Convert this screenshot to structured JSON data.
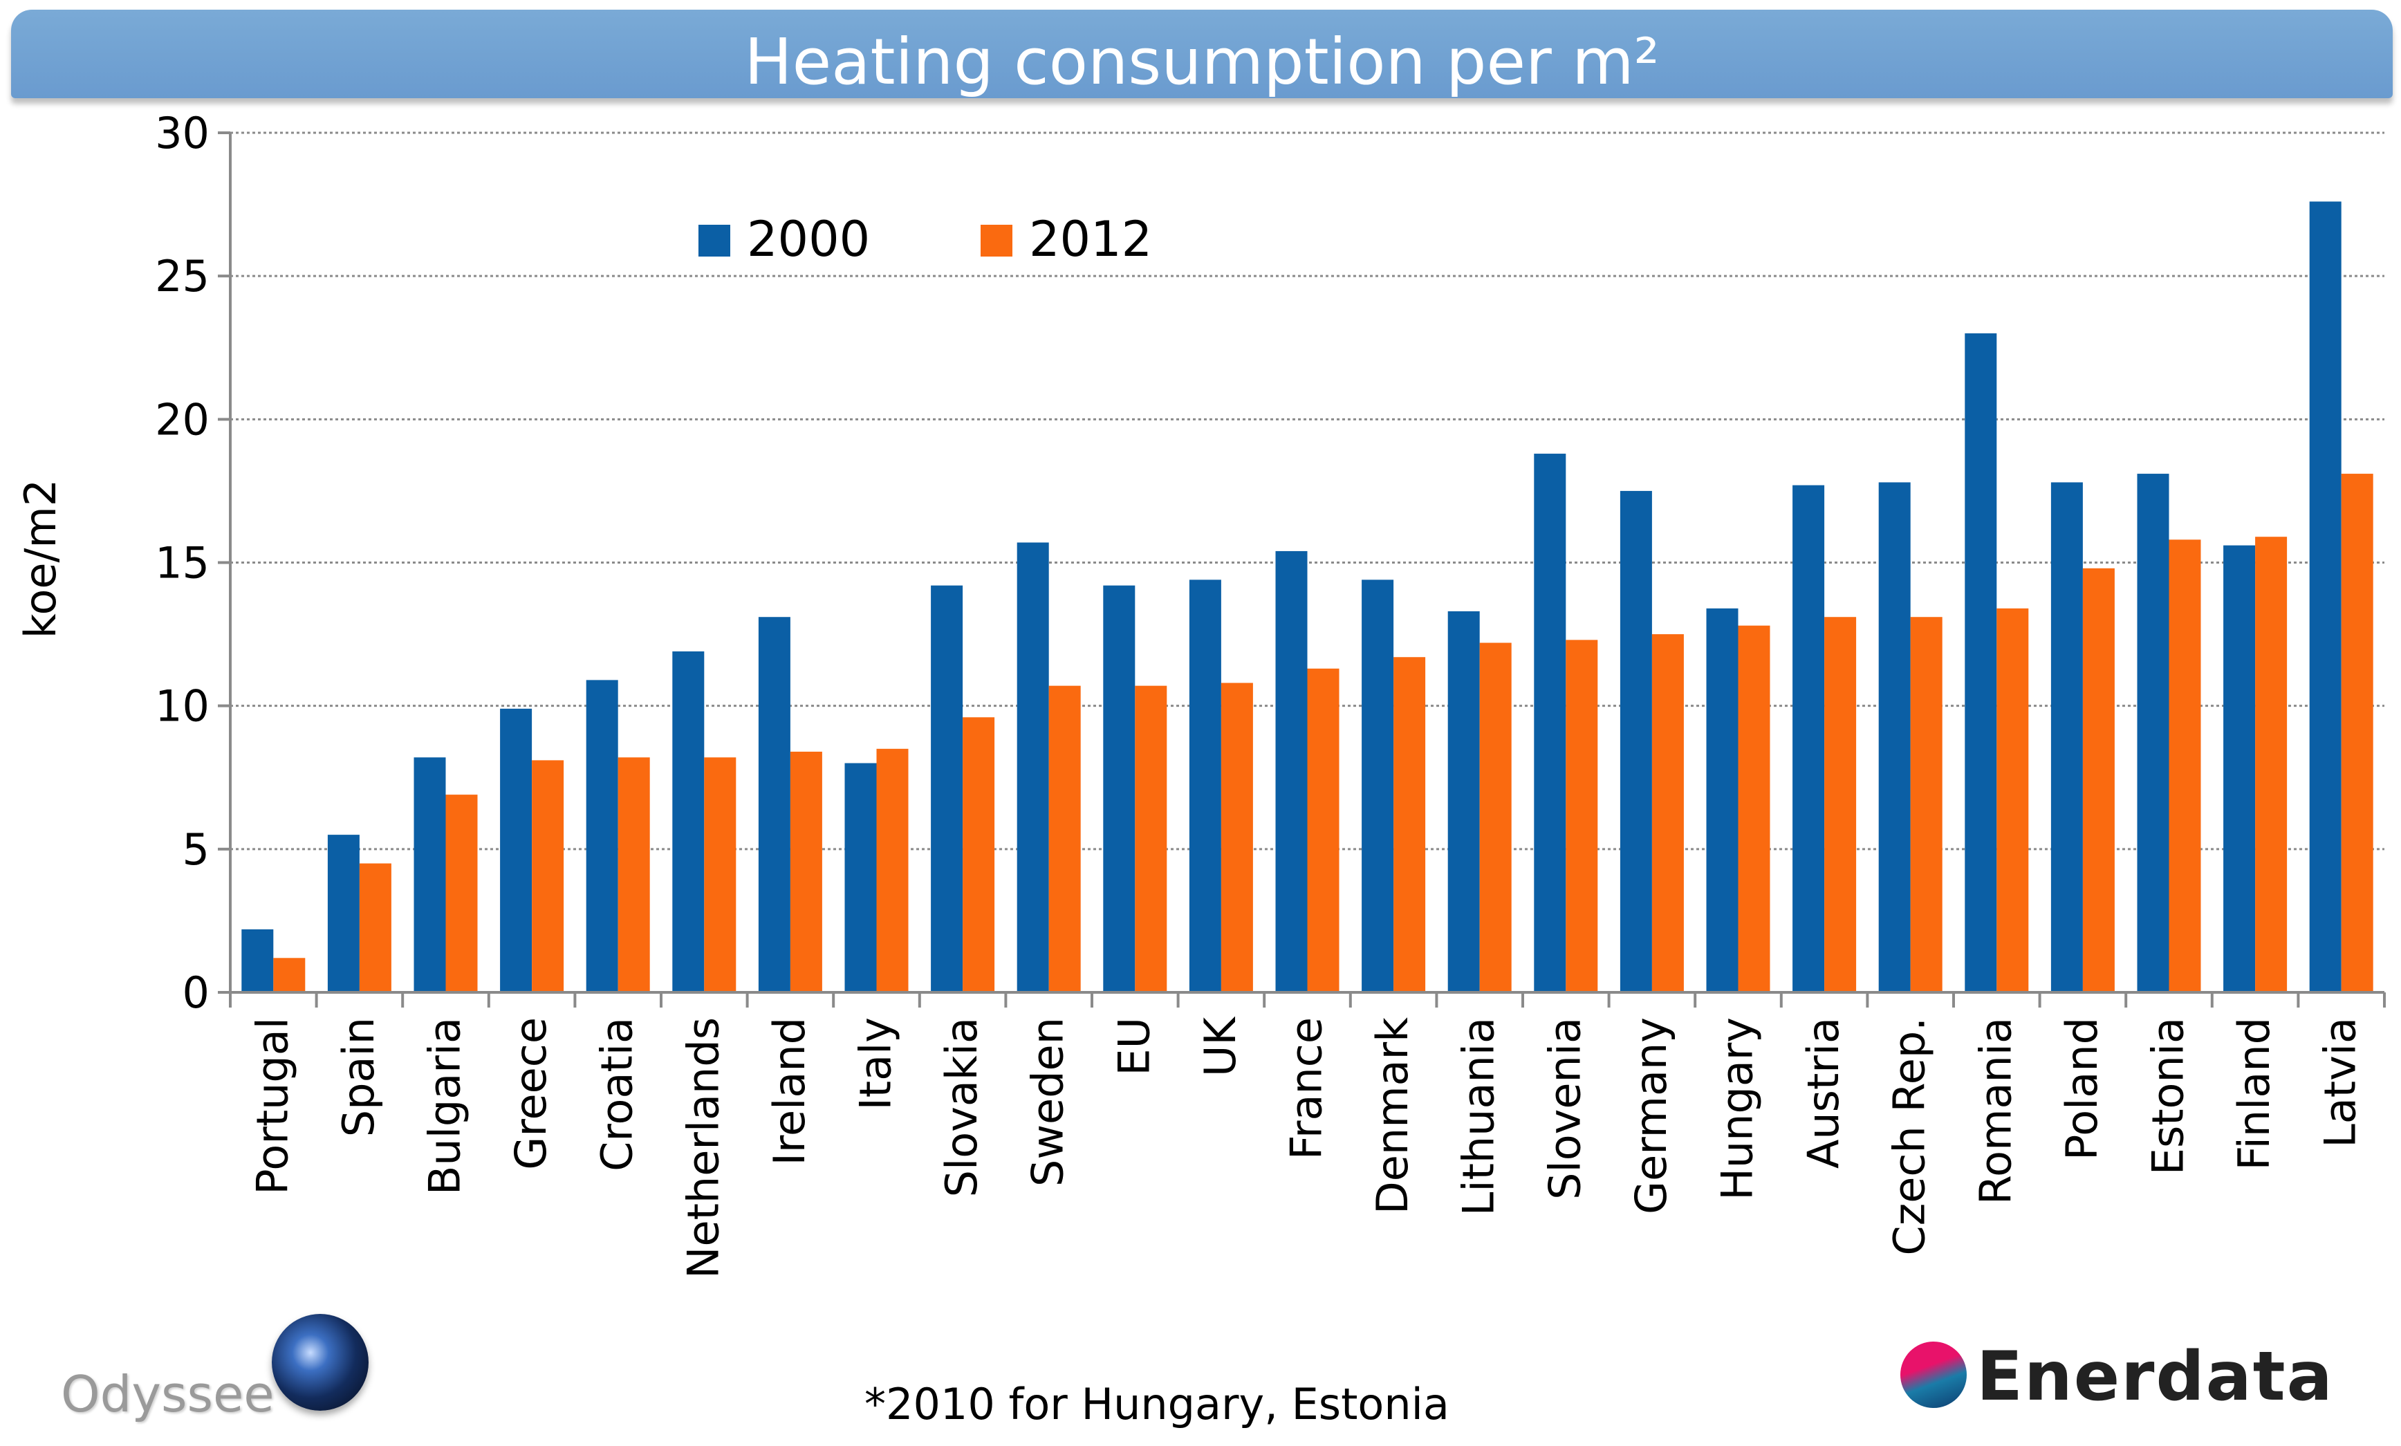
{
  "footnote": "*2010 for Hungary, Estonia",
  "logos": {
    "odyssee": "Odyssee",
    "enerdata": "Enerdata"
  },
  "colors": {
    "series_2000": "#0b5fa5",
    "series_2012": "#fa6a10",
    "banner": "#6fa1d2"
  },
  "chart_data": {
    "type": "bar",
    "title": "Heating consumption per m²",
    "xlabel": "",
    "ylabel": "koe/m2",
    "ylim": [
      0,
      30
    ],
    "yticks": [
      0,
      5,
      10,
      15,
      20,
      25,
      30
    ],
    "grid": true,
    "legend_position": "top-left",
    "categories": [
      "Portugal",
      "Spain",
      "Bulgaria",
      "Greece",
      "Croatia",
      "Netherlands",
      "Ireland",
      "Italy",
      "Slovakia",
      "Sweden",
      "EU",
      "UK",
      "France",
      "Denmark",
      "Lithuania",
      "Slovenia",
      "Germany",
      "Hungary",
      "Austria",
      "Czech Rep.",
      "Romania",
      "Poland",
      "Estonia",
      "Finland",
      "Latvia"
    ],
    "series": [
      {
        "name": "2000",
        "values": [
          2.2,
          5.5,
          8.2,
          9.9,
          10.9,
          11.9,
          13.1,
          8.0,
          14.2,
          15.7,
          14.2,
          14.4,
          15.4,
          14.4,
          13.3,
          18.8,
          17.5,
          13.4,
          17.7,
          17.8,
          23.0,
          17.8,
          18.1,
          15.6,
          27.6
        ]
      },
      {
        "name": "2012",
        "values": [
          1.2,
          4.5,
          6.9,
          8.1,
          8.2,
          8.2,
          8.4,
          8.5,
          9.6,
          10.7,
          10.7,
          10.8,
          11.3,
          11.7,
          12.2,
          12.3,
          12.5,
          12.8,
          13.1,
          13.1,
          13.4,
          14.8,
          15.8,
          15.9,
          18.1
        ]
      }
    ]
  }
}
